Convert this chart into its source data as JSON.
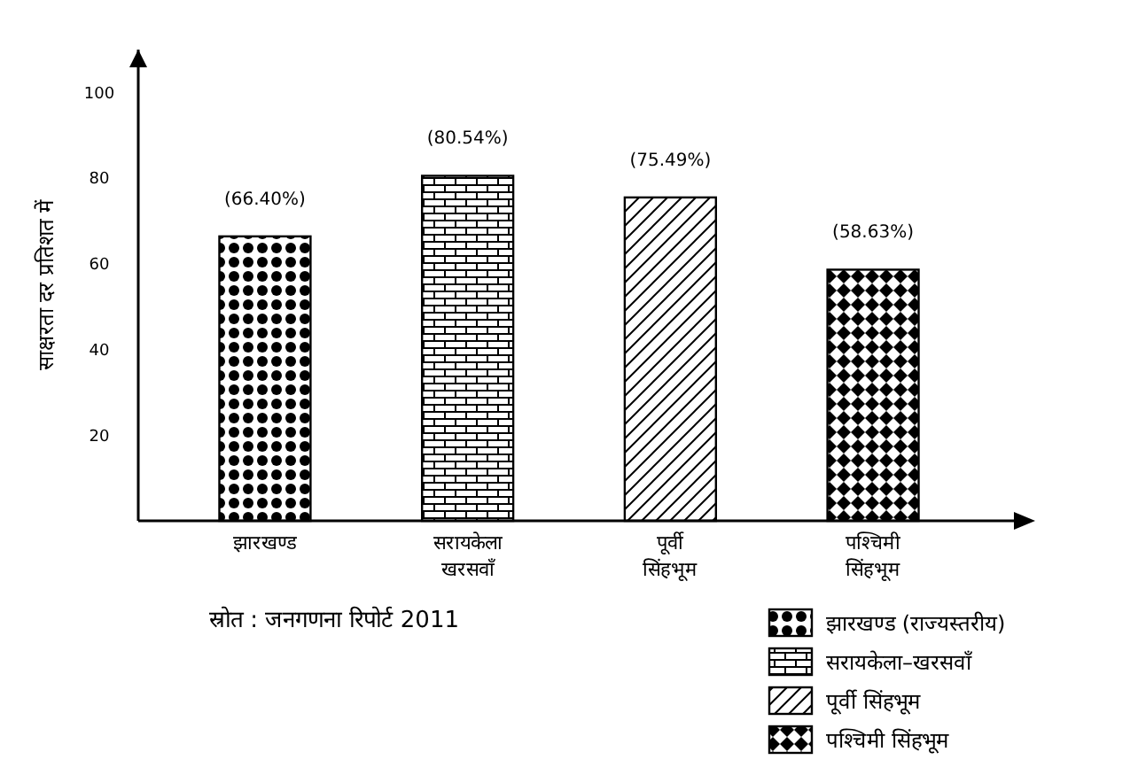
{
  "chart_data": {
    "type": "bar",
    "stacked": true,
    "ylabel": "साक्षरता दर प्रतिशत में",
    "categories": [
      "झारखण्ड",
      "सरायकेला खरसवाँ",
      "पूर्वी सिंहभूम",
      "पश्चिमी सिंहभूम"
    ],
    "series": [
      {
        "name": "झारखण्ड (राज्यस्तरीय)",
        "color": "#000000",
        "values": [
          66.4,
          null,
          null,
          null
        ],
        "value_labels": [
          "(66.40%)",
          null,
          null,
          null
        ]
      },
      {
        "name": "सरायकेला–खरसवाँ",
        "color": "#000000",
        "values": [
          null,
          80.54,
          null,
          null
        ],
        "value_labels": [
          null,
          "(80.54%)",
          null,
          null
        ]
      },
      {
        "name": "पूर्वी सिंहभूम",
        "color": "#000000",
        "values": [
          null,
          null,
          75.49,
          null
        ],
        "value_labels": [
          null,
          null,
          "(75.49%)",
          null
        ]
      },
      {
        "name": "पश्चिमी सिंहभूम",
        "color": "#000000",
        "values": [
          null,
          null,
          null,
          58.63
        ],
        "value_labels": [
          null,
          null,
          null,
          "(58.63%)"
        ]
      }
    ],
    "ylim": [
      0,
      110
    ],
    "yticks": [
      20,
      40,
      60,
      80,
      100
    ],
    "grid": false,
    "legend": "bottom right",
    "annotations": [
      "स्रोत : जनगणना रिपोर्ट 2011"
    ]
  }
}
